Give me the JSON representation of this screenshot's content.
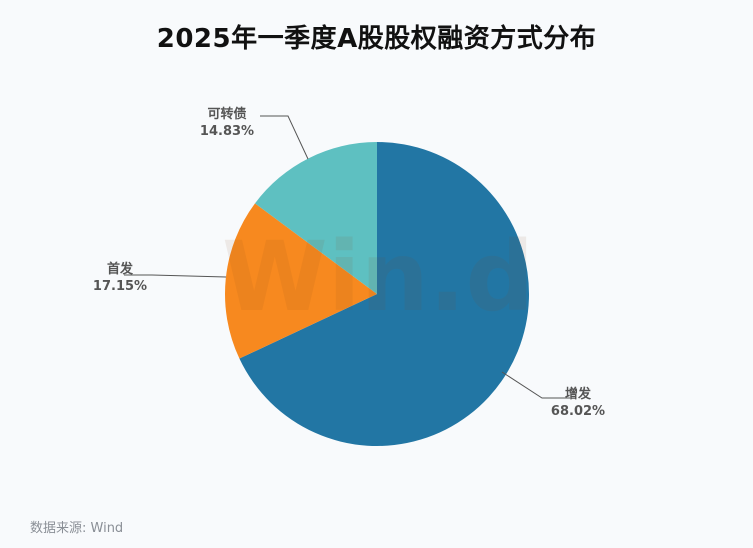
{
  "title": "2025年一季度A股股权融资方式分布",
  "source": "数据来源: Wind",
  "watermark": "Win.d",
  "chart_data": {
    "type": "pie",
    "title": "2025年一季度A股股权融资方式分布",
    "start_angle_deg": 0,
    "direction": "clockwise",
    "slices": [
      {
        "name": "增发",
        "value": 68.02,
        "label": "68.02%",
        "color": "#2276a4"
      },
      {
        "name": "首发",
        "value": 17.15,
        "label": "17.15%",
        "color": "#f7891f"
      },
      {
        "name": "可转债",
        "value": 14.83,
        "label": "14.83%",
        "color": "#5ec0c1"
      }
    ]
  }
}
